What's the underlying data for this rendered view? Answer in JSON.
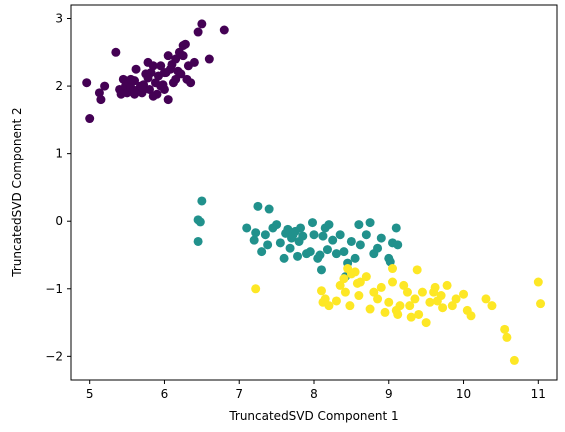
{
  "chart_data": {
    "type": "scatter",
    "title": "",
    "xlabel": "TruncatedSVD Component 1",
    "ylabel": "TruncatedSVD Component 2",
    "xlim": [
      4.75,
      11.25
    ],
    "ylim": [
      -2.35,
      3.2
    ],
    "xticks": [
      5,
      6,
      7,
      8,
      9,
      10,
      11
    ],
    "yticks": [
      -2,
      -1,
      0,
      1,
      2,
      3
    ],
    "ytick_labels": [
      "−2",
      "−1",
      "0",
      "1",
      "2",
      "3"
    ],
    "grid": false,
    "legend": "none",
    "series": [
      {
        "color": "#440154",
        "points": [
          [
            4.96,
            2.05
          ],
          [
            5.0,
            1.52
          ],
          [
            5.13,
            1.9
          ],
          [
            5.15,
            1.8
          ],
          [
            5.2,
            2.0
          ],
          [
            5.35,
            2.5
          ],
          [
            5.4,
            1.95
          ],
          [
            5.42,
            1.88
          ],
          [
            5.45,
            2.1
          ],
          [
            5.48,
            2.0
          ],
          [
            5.5,
            1.9
          ],
          [
            5.52,
            2.05
          ],
          [
            5.55,
            1.98
          ],
          [
            5.58,
            1.92
          ],
          [
            5.6,
            2.08
          ],
          [
            5.6,
            1.88
          ],
          [
            5.62,
            2.25
          ],
          [
            5.65,
            1.95
          ],
          [
            5.68,
            2.0
          ],
          [
            5.7,
            1.9
          ],
          [
            5.72,
            2.02
          ],
          [
            5.75,
            2.18
          ],
          [
            5.78,
            2.35
          ],
          [
            5.8,
            1.95
          ],
          [
            5.82,
            2.2
          ],
          [
            5.85,
            2.3
          ],
          [
            5.88,
            2.05
          ],
          [
            5.9,
            1.88
          ],
          [
            5.92,
            2.15
          ],
          [
            5.95,
            2.3
          ],
          [
            5.98,
            2.02
          ],
          [
            6.0,
            1.95
          ],
          [
            6.02,
            2.2
          ],
          [
            6.05,
            1.8
          ],
          [
            6.08,
            2.25
          ],
          [
            6.1,
            2.32
          ],
          [
            6.12,
            2.05
          ],
          [
            6.15,
            2.4
          ],
          [
            6.18,
            2.22
          ],
          [
            6.2,
            2.5
          ],
          [
            6.22,
            2.18
          ],
          [
            6.25,
            2.45
          ],
          [
            6.28,
            2.62
          ],
          [
            6.3,
            2.1
          ],
          [
            6.32,
            2.3
          ],
          [
            6.35,
            2.05
          ],
          [
            6.4,
            2.35
          ],
          [
            6.45,
            2.8
          ],
          [
            6.5,
            2.92
          ],
          [
            6.6,
            2.4
          ],
          [
            6.8,
            2.83
          ],
          [
            6.25,
            2.6
          ],
          [
            5.78,
            2.12
          ],
          [
            5.95,
            2.0
          ],
          [
            5.85,
            1.85
          ],
          [
            6.05,
            2.45
          ],
          [
            6.15,
            2.1
          ],
          [
            5.55,
            2.1
          ],
          [
            5.7,
            1.98
          ],
          [
            6.0,
            2.2
          ]
        ]
      },
      {
        "color": "#21918c",
        "points": [
          [
            6.45,
            0.02
          ],
          [
            6.48,
            -0.01
          ],
          [
            6.45,
            -0.3
          ],
          [
            6.5,
            0.3
          ],
          [
            7.1,
            -0.1
          ],
          [
            7.2,
            -0.28
          ],
          [
            7.22,
            -0.17
          ],
          [
            7.25,
            0.22
          ],
          [
            7.3,
            -0.45
          ],
          [
            7.35,
            -0.2
          ],
          [
            7.38,
            -0.35
          ],
          [
            7.4,
            0.18
          ],
          [
            7.5,
            -0.05
          ],
          [
            7.55,
            -0.32
          ],
          [
            7.6,
            -0.55
          ],
          [
            7.62,
            -0.18
          ],
          [
            7.65,
            -0.12
          ],
          [
            7.7,
            -0.25
          ],
          [
            7.72,
            -0.2
          ],
          [
            7.75,
            -0.15
          ],
          [
            7.78,
            -0.52
          ],
          [
            7.8,
            -0.3
          ],
          [
            7.82,
            -0.1
          ],
          [
            7.85,
            -0.22
          ],
          [
            7.9,
            -0.48
          ],
          [
            7.95,
            -0.45
          ],
          [
            7.98,
            -0.02
          ],
          [
            8.0,
            -0.2
          ],
          [
            8.05,
            -0.55
          ],
          [
            8.1,
            -0.72
          ],
          [
            8.12,
            -0.22
          ],
          [
            8.15,
            -0.1
          ],
          [
            8.18,
            -0.42
          ],
          [
            8.2,
            -0.05
          ],
          [
            8.25,
            -0.28
          ],
          [
            8.3,
            -0.48
          ],
          [
            8.35,
            -0.2
          ],
          [
            8.4,
            -0.45
          ],
          [
            8.45,
            -0.62
          ],
          [
            8.5,
            -0.3
          ],
          [
            8.55,
            -0.55
          ],
          [
            8.6,
            -0.05
          ],
          [
            8.62,
            -0.35
          ],
          [
            8.7,
            -0.2
          ],
          [
            8.75,
            -0.02
          ],
          [
            8.8,
            -0.48
          ],
          [
            8.85,
            -0.4
          ],
          [
            8.9,
            -0.25
          ],
          [
            9.0,
            -0.55
          ],
          [
            9.05,
            -0.32
          ],
          [
            9.1,
            -0.1
          ],
          [
            9.12,
            -0.35
          ],
          [
            8.42,
            -0.82
          ],
          [
            7.45,
            -0.1
          ],
          [
            7.68,
            -0.4
          ],
          [
            8.08,
            -0.5
          ],
          [
            9.02,
            -0.6
          ]
        ]
      },
      {
        "color": "#fde725",
        "points": [
          [
            7.22,
            -1.0
          ],
          [
            8.1,
            -1.03
          ],
          [
            8.12,
            -1.2
          ],
          [
            8.15,
            -1.15
          ],
          [
            8.2,
            -1.25
          ],
          [
            8.3,
            -1.18
          ],
          [
            8.35,
            -0.95
          ],
          [
            8.4,
            -0.85
          ],
          [
            8.45,
            -0.7
          ],
          [
            8.48,
            -1.25
          ],
          [
            8.5,
            -0.78
          ],
          [
            8.55,
            -0.75
          ],
          [
            8.58,
            -0.92
          ],
          [
            8.6,
            -1.1
          ],
          [
            8.62,
            -0.9
          ],
          [
            8.7,
            -0.82
          ],
          [
            8.75,
            -1.3
          ],
          [
            8.8,
            -1.05
          ],
          [
            8.85,
            -1.15
          ],
          [
            8.9,
            -0.98
          ],
          [
            9.0,
            -1.2
          ],
          [
            9.05,
            -0.7
          ],
          [
            9.05,
            -0.9
          ],
          [
            9.1,
            -1.32
          ],
          [
            9.12,
            -1.38
          ],
          [
            9.15,
            -1.25
          ],
          [
            9.2,
            -0.95
          ],
          [
            9.25,
            -1.05
          ],
          [
            9.3,
            -1.42
          ],
          [
            9.35,
            -1.15
          ],
          [
            9.38,
            -0.72
          ],
          [
            9.4,
            -1.38
          ],
          [
            9.45,
            -1.05
          ],
          [
            9.5,
            -1.5
          ],
          [
            9.55,
            -1.2
          ],
          [
            9.6,
            -1.05
          ],
          [
            9.65,
            -1.18
          ],
          [
            9.7,
            -1.1
          ],
          [
            9.72,
            -1.28
          ],
          [
            9.78,
            -0.95
          ],
          [
            9.85,
            -1.25
          ],
          [
            9.9,
            -1.15
          ],
          [
            10.0,
            -1.08
          ],
          [
            10.05,
            -1.32
          ],
          [
            10.1,
            -1.4
          ],
          [
            10.3,
            -1.15
          ],
          [
            10.38,
            -1.25
          ],
          [
            10.55,
            -1.6
          ],
          [
            10.58,
            -1.72
          ],
          [
            10.68,
            -2.06
          ],
          [
            11.0,
            -0.9
          ],
          [
            11.03,
            -1.22
          ],
          [
            9.28,
            -1.25
          ],
          [
            8.95,
            -1.35
          ],
          [
            8.42,
            -1.05
          ],
          [
            9.62,
            -0.98
          ]
        ]
      }
    ]
  }
}
